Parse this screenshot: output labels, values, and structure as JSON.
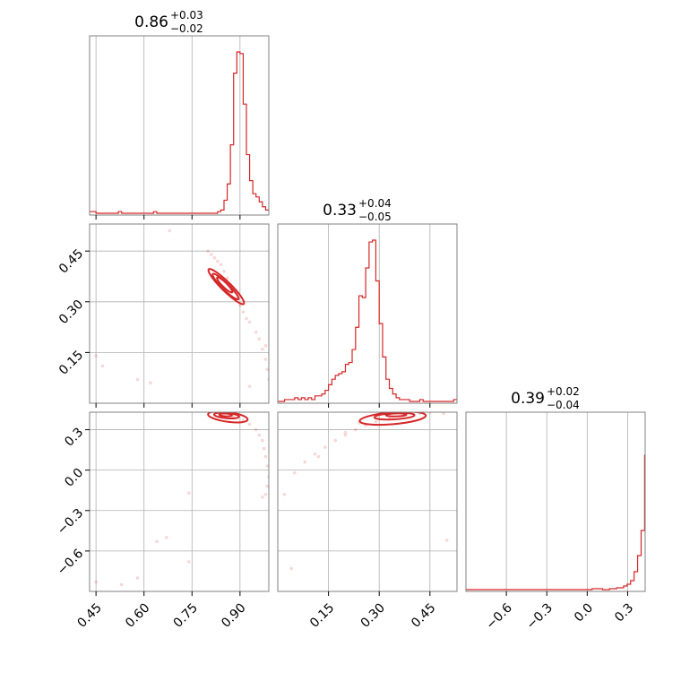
{
  "chart_data": {
    "type": "corner",
    "grid": true,
    "colors": {
      "series": "#d62728",
      "grid": "#b0b0b0",
      "frame": "#808080"
    },
    "params": [
      {
        "title": {
          "median": "0.86",
          "plus": "+0.03",
          "minus": "−0.02"
        },
        "range": [
          0.43,
          0.99
        ],
        "ticks": [
          {
            "value": 0.45,
            "label": "0.45"
          },
          {
            "value": 0.6,
            "label": "0.60"
          },
          {
            "value": 0.75,
            "label": "0.75"
          },
          {
            "value": 0.9,
            "label": "0.90"
          }
        ],
        "hist": {
          "edges_start": 0.43,
          "bin_width": 0.01,
          "counts": [
            1,
            1,
            0,
            0,
            0,
            0,
            0,
            0,
            0,
            1,
            0,
            0,
            0,
            0,
            0,
            0,
            0,
            0,
            0,
            0,
            1,
            0,
            0,
            0,
            0,
            0,
            0,
            0,
            0,
            0,
            0,
            0,
            0,
            0,
            0,
            0,
            0,
            0,
            0,
            0,
            1,
            2,
            8,
            18,
            42,
            86,
            99,
            98,
            67,
            36,
            20,
            12,
            10,
            7,
            4,
            2
          ]
        }
      },
      {
        "title": {
          "median": "0.33",
          "plus": "+0.04",
          "minus": "−0.05"
        },
        "range": [
          0.0,
          0.53
        ],
        "ticks": [
          {
            "value": 0.15,
            "label": "0.15"
          },
          {
            "value": 0.3,
            "label": "0.30"
          },
          {
            "value": 0.45,
            "label": "0.45"
          }
        ],
        "hist": {
          "edges_start": 0.0,
          "bin_width": 0.01,
          "counts": [
            0,
            0,
            1,
            1,
            1,
            2,
            1,
            2,
            1,
            2,
            1,
            3,
            3,
            4,
            6,
            9,
            12,
            14,
            15,
            16,
            20,
            21,
            28,
            40,
            57,
            56,
            72,
            86,
            87,
            65,
            42,
            24,
            12,
            7,
            4,
            2,
            1,
            1,
            1,
            0,
            0,
            0,
            1,
            0,
            0,
            0,
            0,
            0,
            0,
            0,
            0,
            0,
            1
          ]
        }
      },
      {
        "title": {
          "median": "0.39",
          "plus": "+0.02",
          "minus": "−0.04"
        },
        "range": [
          -0.9,
          0.43
        ],
        "ticks": [
          {
            "value": -0.6,
            "label": "−0.6"
          },
          {
            "value": -0.3,
            "label": "−0.3"
          },
          {
            "value": 0.0,
            "label": "0.0"
          },
          {
            "value": 0.3,
            "label": "0.3"
          }
        ],
        "hist": {
          "edges_start": -0.9,
          "bin_width": 0.026,
          "counts": [
            0,
            0,
            0,
            0,
            0,
            0,
            0,
            0,
            0,
            0,
            0,
            0,
            0,
            0,
            0,
            0,
            0,
            0,
            0,
            0,
            0,
            0,
            0,
            0,
            0,
            0,
            0,
            0,
            0,
            0,
            0,
            0,
            0,
            0,
            0,
            0,
            1,
            1,
            1,
            0,
            0,
            1,
            1,
            2,
            2,
            4,
            6,
            10,
            20,
            38,
            66,
            150,
            180,
            140
          ]
        }
      }
    ],
    "scatter": {
      "p1_p0": [
        [
          0.68,
          0.51
        ],
        [
          0.45,
          0.14
        ],
        [
          0.47,
          0.11
        ],
        [
          0.58,
          0.07
        ],
        [
          0.62,
          0.06
        ],
        [
          0.98,
          0.17
        ],
        [
          0.8,
          0.45
        ],
        [
          0.81,
          0.44
        ],
        [
          0.82,
          0.43
        ],
        [
          0.83,
          0.42
        ],
        [
          0.84,
          0.41
        ],
        [
          0.85,
          0.39
        ],
        [
          0.86,
          0.37
        ],
        [
          0.87,
          0.35
        ],
        [
          0.88,
          0.33
        ],
        [
          0.89,
          0.31
        ],
        [
          0.9,
          0.29
        ],
        [
          0.91,
          0.27
        ],
        [
          0.92,
          0.25
        ],
        [
          0.93,
          0.24
        ],
        [
          0.95,
          0.21
        ],
        [
          0.96,
          0.19
        ],
        [
          0.97,
          0.16
        ],
        [
          0.98,
          0.13
        ],
        [
          0.985,
          0.1
        ],
        [
          0.99,
          0.07
        ],
        [
          0.93,
          0.05
        ]
      ],
      "p2_p0": [
        [
          0.82,
          0.43
        ],
        [
          0.85,
          0.42
        ],
        [
          0.88,
          0.4
        ],
        [
          0.91,
          0.37
        ],
        [
          0.93,
          0.34
        ],
        [
          0.95,
          0.3
        ],
        [
          0.96,
          0.26
        ],
        [
          0.97,
          0.22
        ],
        [
          0.975,
          0.16
        ],
        [
          0.98,
          0.1
        ],
        [
          0.985,
          0.03
        ],
        [
          0.99,
          -0.05
        ],
        [
          0.985,
          -0.12
        ],
        [
          0.98,
          -0.18
        ],
        [
          0.97,
          -0.2
        ],
        [
          0.74,
          -0.17
        ],
        [
          0.67,
          -0.5
        ],
        [
          0.64,
          -0.53
        ],
        [
          0.58,
          -0.8
        ],
        [
          0.45,
          -0.83
        ],
        [
          0.53,
          -0.85
        ],
        [
          0.74,
          -0.68
        ]
      ],
      "p2_p1": [
        [
          0.02,
          -0.18
        ],
        [
          0.05,
          -0.02
        ],
        [
          0.08,
          0.06
        ],
        [
          0.11,
          0.12
        ],
        [
          0.14,
          0.17
        ],
        [
          0.17,
          0.22
        ],
        [
          0.2,
          0.26
        ],
        [
          0.23,
          0.3
        ],
        [
          0.26,
          0.33
        ],
        [
          0.29,
          0.36
        ],
        [
          0.33,
          0.38
        ],
        [
          0.38,
          0.41
        ],
        [
          0.42,
          0.42
        ],
        [
          0.45,
          0.43
        ],
        [
          0.49,
          0.42
        ],
        [
          0.5,
          -0.52
        ],
        [
          0.04,
          -0.73
        ],
        [
          0.2,
          0.28
        ],
        [
          0.12,
          0.1
        ],
        [
          0.24,
          0.35
        ]
      ]
    },
    "contours": {
      "p1_p0": [
        {
          "cx": 0.857,
          "cy": 0.345,
          "a": 0.075,
          "b": 0.014,
          "angle_deg": -43
        },
        {
          "cx": 0.855,
          "cy": 0.345,
          "a": 0.055,
          "b": 0.01,
          "angle_deg": -43
        },
        {
          "cx": 0.852,
          "cy": 0.35,
          "a": 0.032,
          "b": 0.007,
          "angle_deg": -43
        }
      ],
      "p2_p0": [
        {
          "cx": 0.862,
          "cy": 0.395,
          "a": 0.065,
          "b": 0.03,
          "angle_deg": -18
        },
        {
          "cx": 0.858,
          "cy": 0.405,
          "a": 0.04,
          "b": 0.018,
          "angle_deg": -12
        },
        {
          "cx": 0.855,
          "cy": 0.41,
          "a": 0.02,
          "b": 0.01,
          "angle_deg": -8
        }
      ],
      "p2_p1": [
        {
          "cx": 0.34,
          "cy": 0.385,
          "a": 0.1,
          "b": 0.04,
          "angle_deg": 12
        },
        {
          "cx": 0.345,
          "cy": 0.4,
          "a": 0.06,
          "b": 0.022,
          "angle_deg": 8
        },
        {
          "cx": 0.35,
          "cy": 0.41,
          "a": 0.03,
          "b": 0.011,
          "angle_deg": 4
        }
      ]
    }
  }
}
